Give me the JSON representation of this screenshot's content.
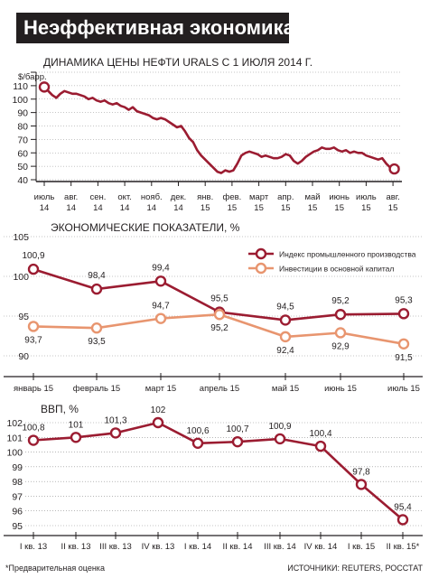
{
  "header": {
    "title": "Неэффективная экономика"
  },
  "footer": {
    "note": "*Предварительная оценка",
    "source": "ИСТОЧНИКИ: REUTERS, РОССТАТ"
  },
  "colors": {
    "dark_red": "#9b1c31",
    "light_orange": "#e8956f",
    "axis": "#231f20",
    "grid": "#8c8c8c"
  },
  "chart_data": [
    {
      "type": "line",
      "title": "ДИНАМИКА ЦЕНЫ НЕФТИ URALS С 1 ИЮЛЯ 2014 Г.",
      "ylabel": "$/барр.",
      "ylim": [
        40,
        120
      ],
      "yticks": [
        40,
        50,
        60,
        70,
        80,
        90,
        100,
        110,
        120
      ],
      "xticks": [
        {
          "label": "июль",
          "year": "14"
        },
        {
          "label": "авг.",
          "year": "14"
        },
        {
          "label": "сен.",
          "year": "14"
        },
        {
          "label": "окт.",
          "year": "14"
        },
        {
          "label": "нояб.",
          "year": "14"
        },
        {
          "label": "дек.",
          "year": "14"
        },
        {
          "label": "янв.",
          "year": "15"
        },
        {
          "label": "фев.",
          "year": "15"
        },
        {
          "label": "март",
          "year": "15"
        },
        {
          "label": "апр.",
          "year": "15"
        },
        {
          "label": "май",
          "year": "15"
        },
        {
          "label": "июнь",
          "year": "15"
        },
        {
          "label": "июль",
          "year": "15"
        },
        {
          "label": "авг.",
          "year": "15"
        }
      ],
      "x": [
        0,
        0.15,
        0.3,
        0.45,
        0.6,
        0.75,
        0.9,
        1.05,
        1.2,
        1.35,
        1.5,
        1.65,
        1.8,
        1.95,
        2.1,
        2.25,
        2.4,
        2.55,
        2.7,
        2.85,
        3,
        3.15,
        3.3,
        3.45,
        3.6,
        3.75,
        3.9,
        4.05,
        4.2,
        4.35,
        4.5,
        4.65,
        4.8,
        4.95,
        5.1,
        5.25,
        5.4,
        5.55,
        5.7,
        5.85,
        6,
        6.15,
        6.3,
        6.45,
        6.6,
        6.75,
        6.9,
        7.05,
        7.2,
        7.35,
        7.5,
        7.65,
        7.8,
        7.95,
        8.1,
        8.25,
        8.4,
        8.55,
        8.7,
        8.85,
        9,
        9.15,
        9.3,
        9.45,
        9.6,
        9.75,
        9.9,
        10.05,
        10.2,
        10.35,
        10.5,
        10.65,
        10.8,
        10.95,
        11.1,
        11.25,
        11.4,
        11.55,
        11.7,
        11.85,
        12,
        12.15,
        12.3,
        12.45,
        12.6,
        12.75,
        12.9,
        13.05
      ],
      "values": [
        109,
        106,
        103,
        101,
        104,
        106,
        105,
        104,
        104,
        103,
        102,
        100,
        101,
        99,
        98,
        99,
        97,
        96,
        97,
        95,
        94,
        92,
        94,
        91,
        90,
        89,
        88,
        86,
        85,
        86,
        85,
        83,
        81,
        79,
        80,
        76,
        71,
        68,
        62,
        58,
        55,
        52,
        49,
        46,
        45,
        47,
        46,
        47,
        52,
        58,
        60,
        61,
        60,
        59,
        57,
        58,
        57,
        56,
        56,
        57,
        59,
        58,
        54,
        52,
        54,
        57,
        59,
        61,
        62,
        64,
        63,
        63,
        64,
        62,
        61,
        62,
        60,
        61,
        60,
        60,
        58,
        57,
        56,
        55,
        56,
        52,
        49,
        48
      ],
      "markers": [
        {
          "x": 0,
          "value": 109
        },
        {
          "x": 13.05,
          "value": 48
        }
      ]
    },
    {
      "type": "line",
      "title": "ЭКОНОМИЧЕСКИЕ ПОКАЗАТЕЛИ, %",
      "ylim": [
        90,
        105
      ],
      "yticks": [
        90,
        95,
        100,
        105
      ],
      "categories": [
        "январь 15",
        "февраль 15",
        "март 15",
        "апрель 15",
        "май 15",
        "июнь 15",
        "июль 15"
      ],
      "legend_position": "top-right",
      "series": [
        {
          "name": "Индекс промышленного производства",
          "values": [
            100.9,
            98.4,
            99.4,
            95.5,
            94.5,
            95.2,
            95.3
          ],
          "labels": [
            "100,9",
            "98,4",
            "99,4",
            "95,5",
            "94,5",
            "95,2",
            "95,3"
          ],
          "color": "#9b1c31"
        },
        {
          "name": "Инвестиции в основной капитал",
          "values": [
            93.7,
            93.5,
            94.7,
            95.2,
            92.4,
            92.9,
            91.5
          ],
          "labels": [
            "93,7",
            "93,5",
            "94,7",
            "95,2",
            "92,4",
            "92,9",
            "91,5"
          ],
          "color": "#e8956f"
        }
      ]
    },
    {
      "type": "line",
      "title": "ВВП, %",
      "ylim": [
        95,
        102
      ],
      "yticks": [
        95,
        96,
        97,
        98,
        99,
        100,
        101,
        102
      ],
      "categories": [
        "I кв. 13",
        "II кв. 13",
        "III кв. 13",
        "IV кв. 13",
        "I кв. 14",
        "II кв. 14",
        "III кв. 14",
        "IV кв. 14",
        "I кв. 15",
        "II кв. 15*"
      ],
      "series": [
        {
          "values": [
            100.8,
            101,
            101.3,
            102,
            100.6,
            100.7,
            100.9,
            100.4,
            97.8,
            95.4
          ],
          "labels": [
            "100,8",
            "101",
            "101,3",
            "102",
            "100,6",
            "100,7",
            "100,9",
            "100,4",
            "97,8",
            "95,4"
          ],
          "color": "#9b1c31"
        }
      ]
    }
  ]
}
